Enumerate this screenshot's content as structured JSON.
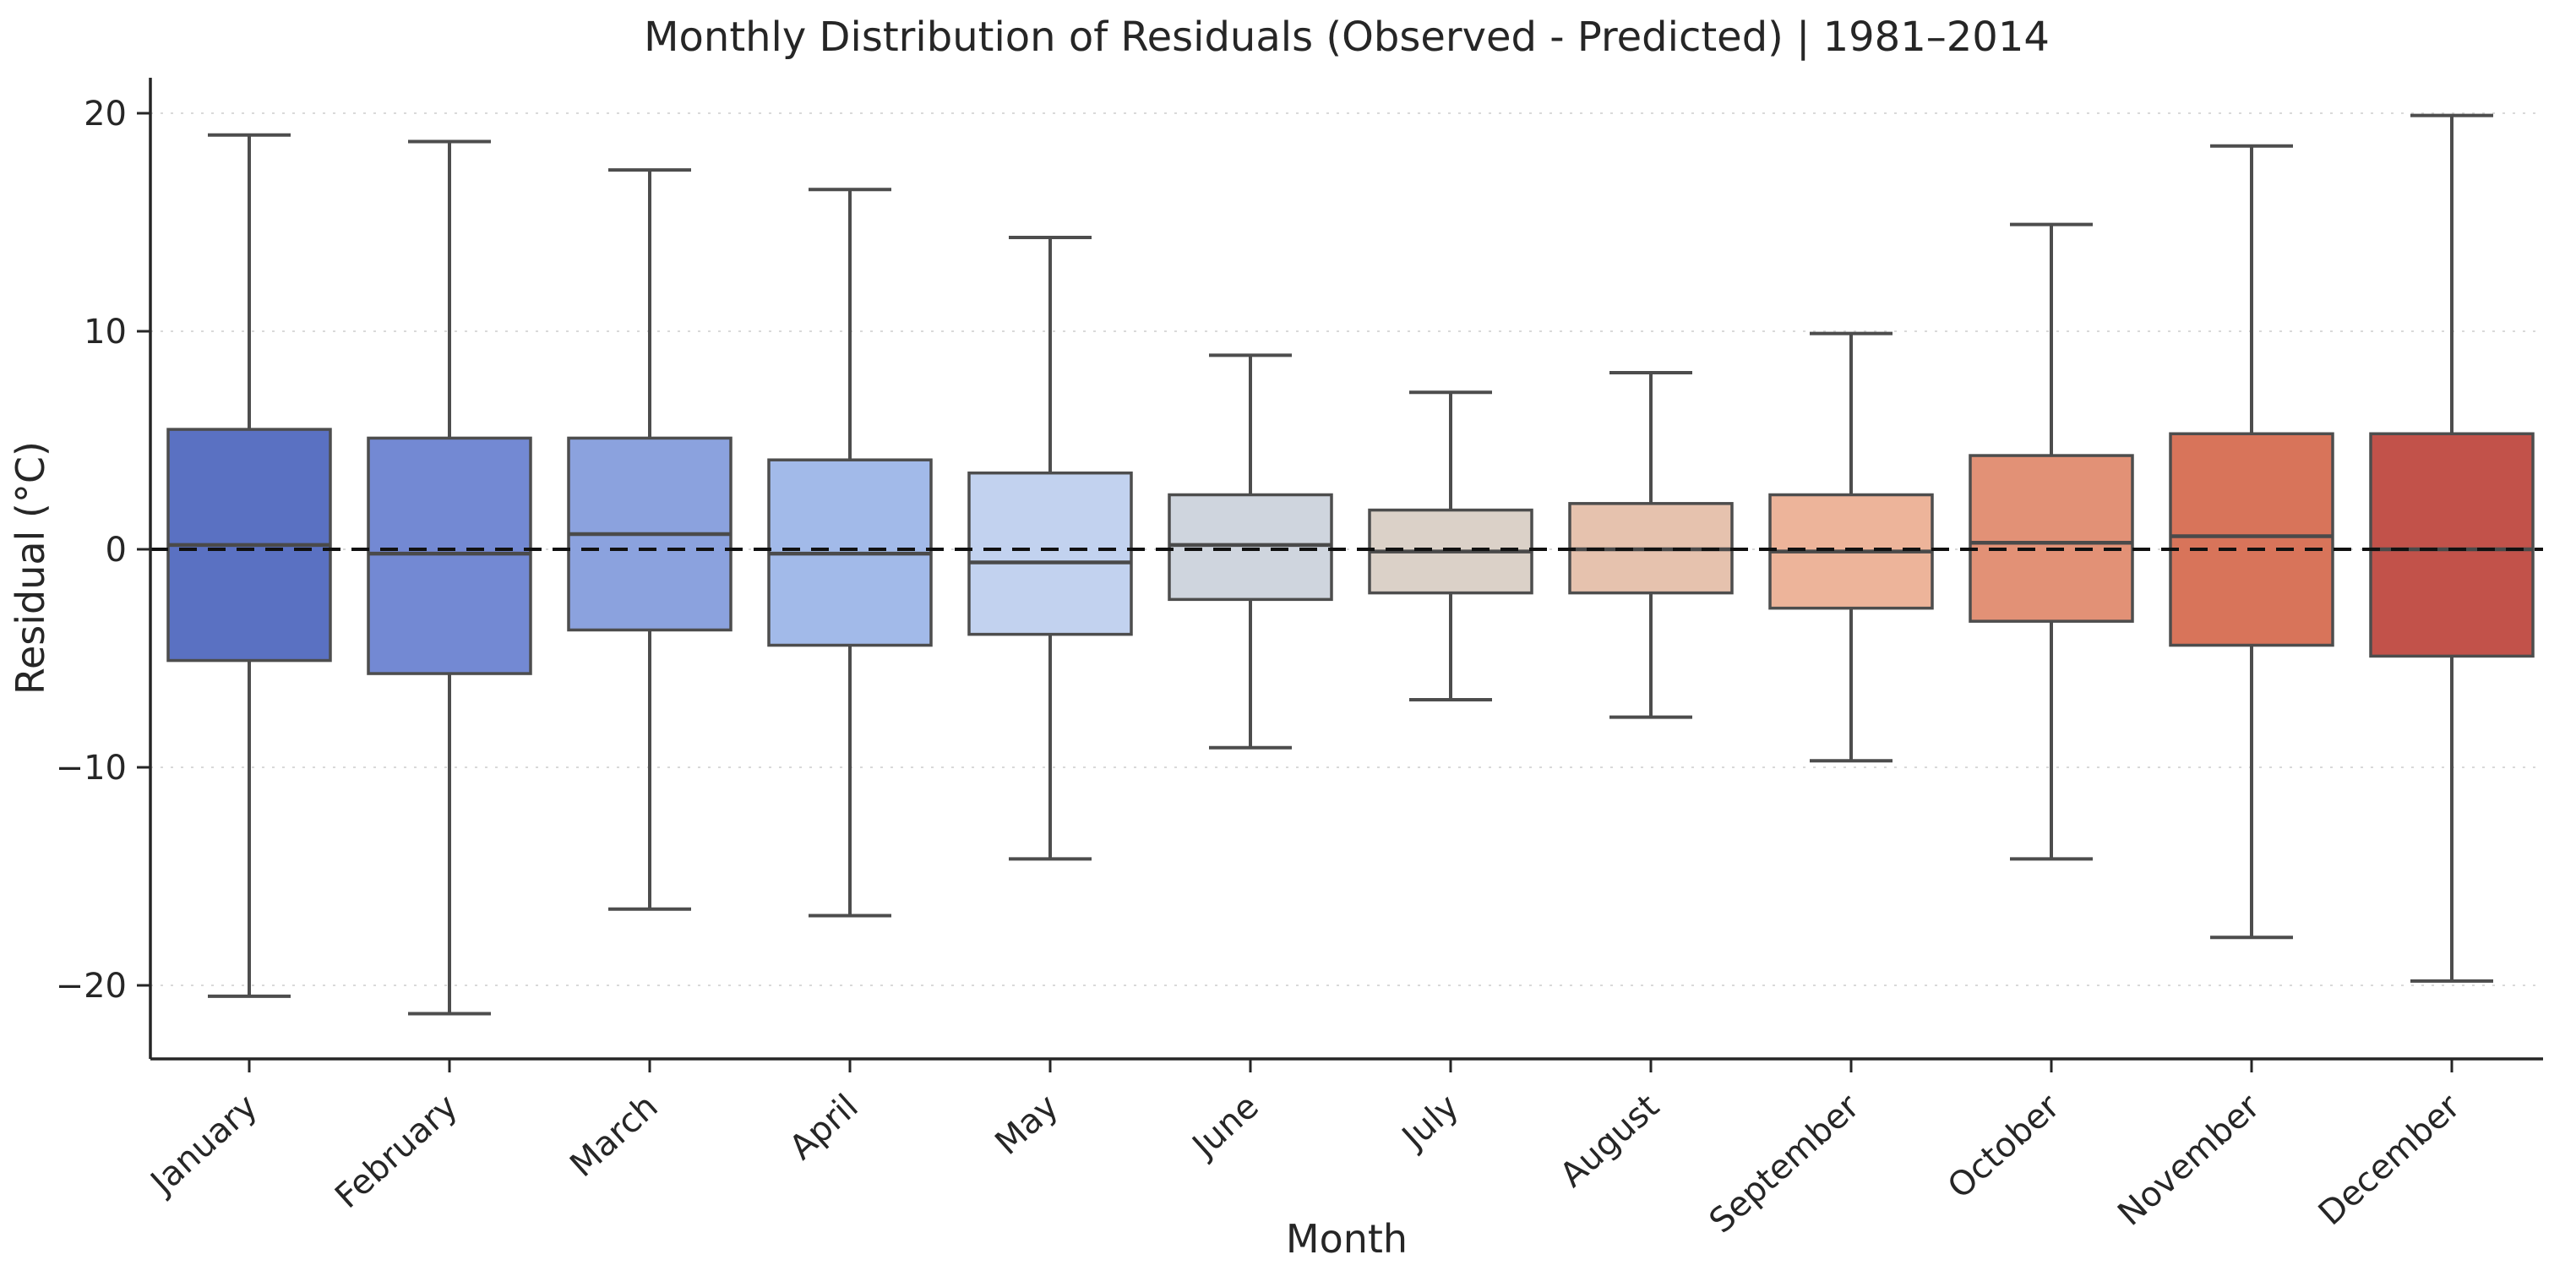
{
  "figure": {
    "title": "Monthly Distribution of Residuals (Observed - Predicted) | 1981–2014",
    "x_axis_label": "Month",
    "y_axis_label": "Residual (°C)"
  },
  "chart_data": {
    "type": "boxplot",
    "title": "Monthly Distribution of Residuals (Observed - Predicted) | 1981–2014",
    "xlabel": "Month",
    "ylabel": "Residual (°C)",
    "categories": [
      "January",
      "February",
      "March",
      "April",
      "May",
      "June",
      "July",
      "August",
      "September",
      "October",
      "November",
      "December"
    ],
    "yticks": [
      20,
      10,
      0,
      -10,
      -20
    ],
    "ylim": [
      -23.4,
      21.6
    ],
    "grid": {
      "axis": "y",
      "style": "dotted",
      "color": "#d9d9d9"
    },
    "zero_reference_line": {
      "value": 0,
      "style": "dashed",
      "color": "#111111"
    },
    "legend": "none",
    "palette": "coolwarm",
    "boxes": [
      {
        "month": "January",
        "whisker_low": -20.5,
        "q1": -5.1,
        "median": 0.2,
        "q3": 5.5,
        "whisker_high": 19.0,
        "color": "#5a71c2"
      },
      {
        "month": "February",
        "whisker_low": -21.3,
        "q1": -5.7,
        "median": -0.2,
        "q3": 5.1,
        "whisker_high": 18.7,
        "color": "#7389d3"
      },
      {
        "month": "March",
        "whisker_low": -16.5,
        "q1": -3.7,
        "median": 0.7,
        "q3": 5.1,
        "whisker_high": 17.4,
        "color": "#8ba2de"
      },
      {
        "month": "April",
        "whisker_low": -16.8,
        "q1": -4.4,
        "median": -0.2,
        "q3": 4.1,
        "whisker_high": 16.5,
        "color": "#a2bae9"
      },
      {
        "month": "May",
        "whisker_low": -14.2,
        "q1": -3.9,
        "median": -0.6,
        "q3": 3.5,
        "whisker_high": 14.3,
        "color": "#c2d2ef"
      },
      {
        "month": "June",
        "whisker_low": -9.1,
        "q1": -2.3,
        "median": 0.2,
        "q3": 2.5,
        "whisker_high": 8.9,
        "color": "#cfd5de"
      },
      {
        "month": "July",
        "whisker_low": -6.9,
        "q1": -2.0,
        "median": -0.1,
        "q3": 1.8,
        "whisker_high": 7.2,
        "color": "#dbd1c8"
      },
      {
        "month": "August",
        "whisker_low": -7.7,
        "q1": -2.0,
        "median": 0.0,
        "q3": 2.1,
        "whisker_high": 8.1,
        "color": "#e6c2ae"
      },
      {
        "month": "September",
        "whisker_low": -9.7,
        "q1": -2.7,
        "median": -0.1,
        "q3": 2.5,
        "whisker_high": 9.9,
        "color": "#edb49a"
      },
      {
        "month": "October",
        "whisker_low": -14.2,
        "q1": -3.3,
        "median": 0.3,
        "q3": 4.3,
        "whisker_high": 14.9,
        "color": "#e29176"
      },
      {
        "month": "November",
        "whisker_low": -17.8,
        "q1": -4.4,
        "median": 0.6,
        "q3": 5.3,
        "whisker_high": 18.5,
        "color": "#d8745a"
      },
      {
        "month": "December",
        "whisker_low": -19.8,
        "q1": -4.9,
        "median": 0.0,
        "q3": 5.3,
        "whisker_high": 19.9,
        "color": "#c2524a"
      }
    ],
    "style": {
      "box_edge_color": "#4d4d4d",
      "median_color": "#4a4a4a",
      "whisker_color": "#4d4d4d",
      "spine_color": "#262626",
      "tick_color": "#262626",
      "background": "#ffffff"
    }
  }
}
